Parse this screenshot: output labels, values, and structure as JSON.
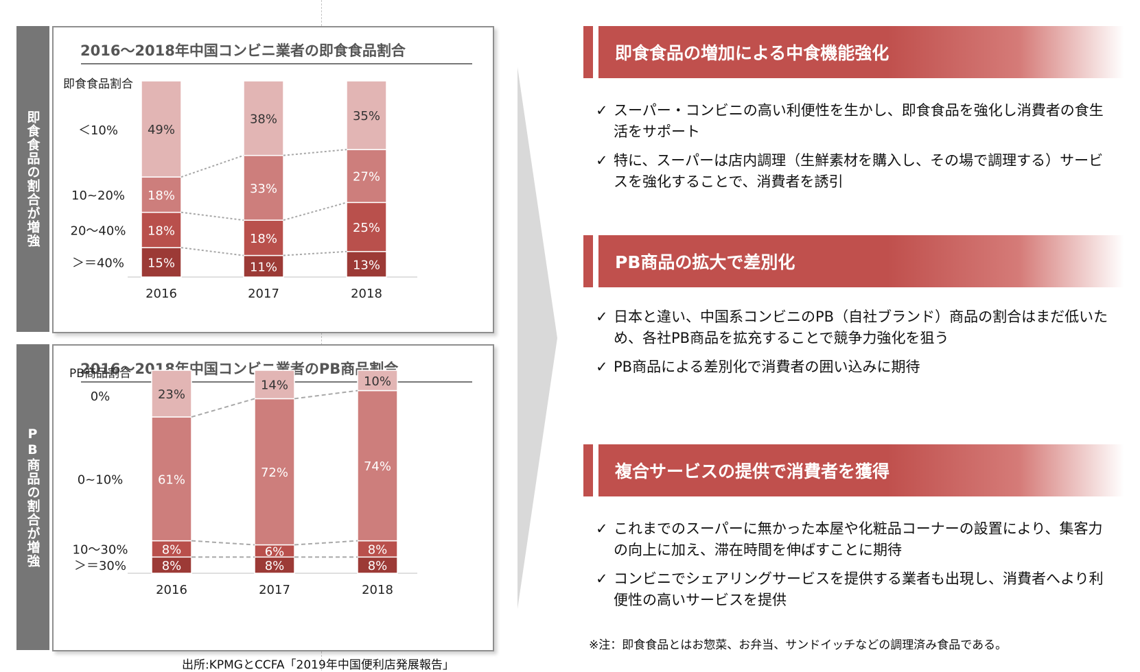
{
  "left": {
    "tab1": "即食食品の割合が増強",
    "tab2": "PB商品の割合が増強",
    "source": "出所:KPMGとCCFA「2019年中国便利店発展報告」"
  },
  "chart_data": [
    {
      "type": "bar",
      "stacked": true,
      "title": "2016～2018年中国コンビニ業者の即食食品割合",
      "legend_title": "即食食品割合",
      "categories": [
        "2016",
        "2017",
        "2018"
      ],
      "series": [
        {
          "name": "＞＝40%",
          "values": [
            15,
            11,
            13
          ],
          "color": "#9c3a36"
        },
        {
          "name": "20～40%",
          "values": [
            18,
            18,
            25
          ],
          "color": "#b9504c"
        },
        {
          "name": "10~20%",
          "values": [
            18,
            33,
            27
          ],
          "color": "#cd7e7c"
        },
        {
          "name": "＜10%",
          "values": [
            49,
            38,
            35
          ],
          "color": "#e2b5b4"
        }
      ],
      "labels": [
        [
          "15%",
          "11%",
          "13%"
        ],
        [
          "18%",
          "18%",
          "25%"
        ],
        [
          "18%",
          "33%",
          "27%"
        ],
        [
          "49%",
          "38%",
          "35%"
        ]
      ]
    },
    {
      "type": "bar",
      "stacked": true,
      "title": "2016～2018年中国コンビニ業者のPB商品割合",
      "legend_title": "PB商品割合",
      "categories": [
        "2016",
        "2017",
        "2018"
      ],
      "series": [
        {
          "name": "＞＝30%",
          "values": [
            8,
            8,
            8
          ],
          "color": "#9c3a36"
        },
        {
          "name": "10～30%",
          "values": [
            8,
            6,
            8
          ],
          "color": "#b9504c"
        },
        {
          "name": "0~10%",
          "values": [
            61,
            72,
            74
          ],
          "color": "#cd7e7c"
        },
        {
          "name": "0%",
          "values": [
            23,
            14,
            10
          ],
          "color": "#e2b5b4"
        }
      ],
      "labels": [
        [
          "8%",
          "8%",
          "8%"
        ],
        [
          "8%",
          "6%",
          "8%"
        ],
        [
          "61%",
          "72%",
          "74%"
        ],
        [
          "23%",
          "14%",
          "10%"
        ]
      ]
    }
  ],
  "right": {
    "sections": [
      {
        "title": "即食食品の増加による中食機能強化",
        "bullets": [
          "スーパー・コンビニの高い利便性を生かし、即食食品を強化し消費者の食生活をサポート",
          "特に、スーパーは店内調理（生鮮素材を購入し、その場で調理する）サービスを強化することで、消費者を誘引"
        ]
      },
      {
        "title": "PB商品の拡大で差別化",
        "bullets": [
          "日本と違い、中国系コンビニのPB（自社ブランド）商品の割合はまだ低いため、各社PB商品を拡充することで競争力強化を狙う",
          "PB商品による差別化で消費者の囲い込みに期待"
        ]
      },
      {
        "title": "複合サービスの提供で消費者を獲得",
        "bullets": [
          "これまでのスーパーに無かった本屋や化粧品コーナーの設置により、集客力の向上に加え、滞在時間を伸ばすことに期待",
          "コンビニでシェアリングサービスを提供する業者も出現し、消費者へより利便性の高いサービスを提供"
        ]
      }
    ],
    "check": "✓",
    "note": "※注：即食食品とはお惣菜、お弁当、サンドイッチなどの調理済み食品である。"
  }
}
